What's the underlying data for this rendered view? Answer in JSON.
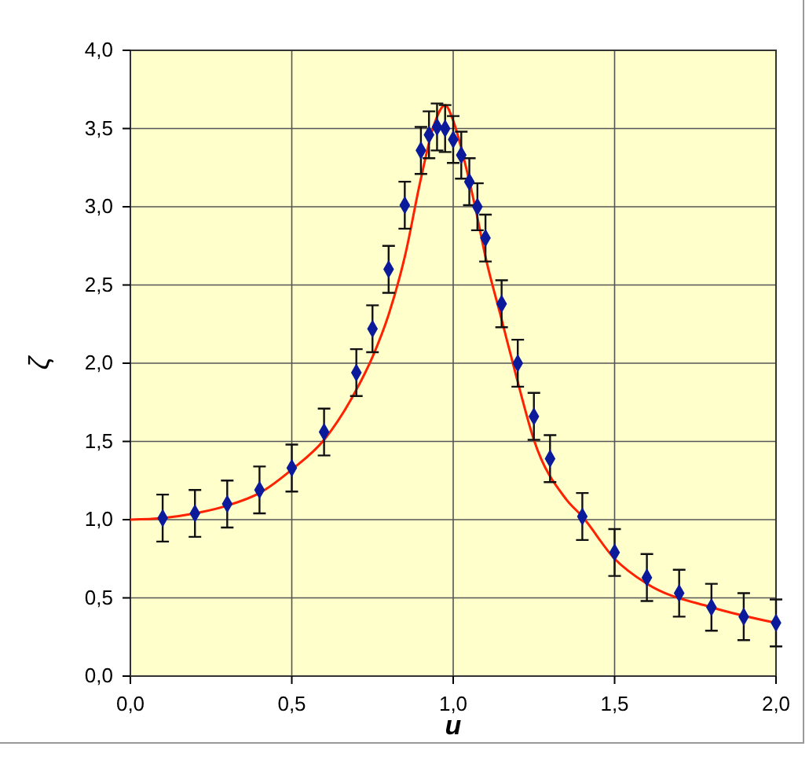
{
  "chart_data": {
    "type": "scatter",
    "xlabel": "u",
    "ylabel": "ζ",
    "xlim": [
      0,
      2
    ],
    "ylim": [
      0,
      4
    ],
    "xticks": [
      {
        "value": 0,
        "label": "0,0"
      },
      {
        "value": 0.5,
        "label": "0,5"
      },
      {
        "value": 1,
        "label": "1,0"
      },
      {
        "value": 1.5,
        "label": "1,5"
      },
      {
        "value": 2,
        "label": "2,0"
      }
    ],
    "yticks": [
      {
        "value": 0,
        "label": "0,0"
      },
      {
        "value": 0.5,
        "label": "0,5"
      },
      {
        "value": 1,
        "label": "1,0"
      },
      {
        "value": 1.5,
        "label": "1,5"
      },
      {
        "value": 2,
        "label": "2,0"
      },
      {
        "value": 2.5,
        "label": "2,5"
      },
      {
        "value": 3,
        "label": "3,0"
      },
      {
        "value": 3.5,
        "label": "3,5"
      },
      {
        "value": 4,
        "label": "4,0"
      }
    ],
    "grid": true,
    "series": [
      {
        "type": "line",
        "color": "#ff2200",
        "marker": "none",
        "line_style": "solid",
        "x": [
          0,
          0.1,
          0.2,
          0.3,
          0.4,
          0.5,
          0.6,
          0.7,
          0.75,
          0.8,
          0.85,
          0.9,
          0.94,
          0.975,
          1.0,
          1.04,
          1.07,
          1.1,
          1.15,
          1.2,
          1.25,
          1.35,
          1.4,
          1.5,
          1.6,
          1.8,
          2.0
        ],
        "values": [
          1.0,
          1.01,
          1.04,
          1.09,
          1.17,
          1.32,
          1.51,
          1.83,
          2.04,
          2.31,
          2.68,
          3.18,
          3.52,
          3.65,
          3.55,
          3.25,
          2.98,
          2.68,
          2.28,
          1.88,
          1.51,
          1.13,
          1.02,
          0.75,
          0.59,
          0.44,
          0.34
        ]
      },
      {
        "color": "#0a1a9a",
        "marker": "diamond",
        "x": [
          0.1,
          0.2,
          0.3,
          0.4,
          0.5,
          0.6,
          0.7,
          0.75,
          0.8,
          0.85,
          0.9,
          0.925,
          0.95,
          0.975,
          1.0,
          1.025,
          1.05,
          1.075,
          1.1,
          1.15,
          1.2,
          1.25,
          1.3,
          1.4,
          1.5,
          1.6,
          1.7,
          1.8,
          1.9,
          2.0
        ],
        "values": [
          1.01,
          1.04,
          1.1,
          1.19,
          1.33,
          1.56,
          1.94,
          2.22,
          2.6,
          3.01,
          3.36,
          3.46,
          3.51,
          3.5,
          3.43,
          3.33,
          3.16,
          3.0,
          2.8,
          2.38,
          2.0,
          1.66,
          1.39,
          1.02,
          0.79,
          0.63,
          0.53,
          0.44,
          0.38,
          0.34
        ],
        "errors": [
          0.15,
          0.15,
          0.15,
          0.15,
          0.15,
          0.15,
          0.15,
          0.15,
          0.15,
          0.15,
          0.15,
          0.15,
          0.15,
          0.15,
          0.15,
          0.15,
          0.15,
          0.15,
          0.15,
          0.15,
          0.15,
          0.15,
          0.15,
          0.15,
          0.15,
          0.15,
          0.15,
          0.15,
          0.15,
          0.15
        ]
      }
    ]
  }
}
